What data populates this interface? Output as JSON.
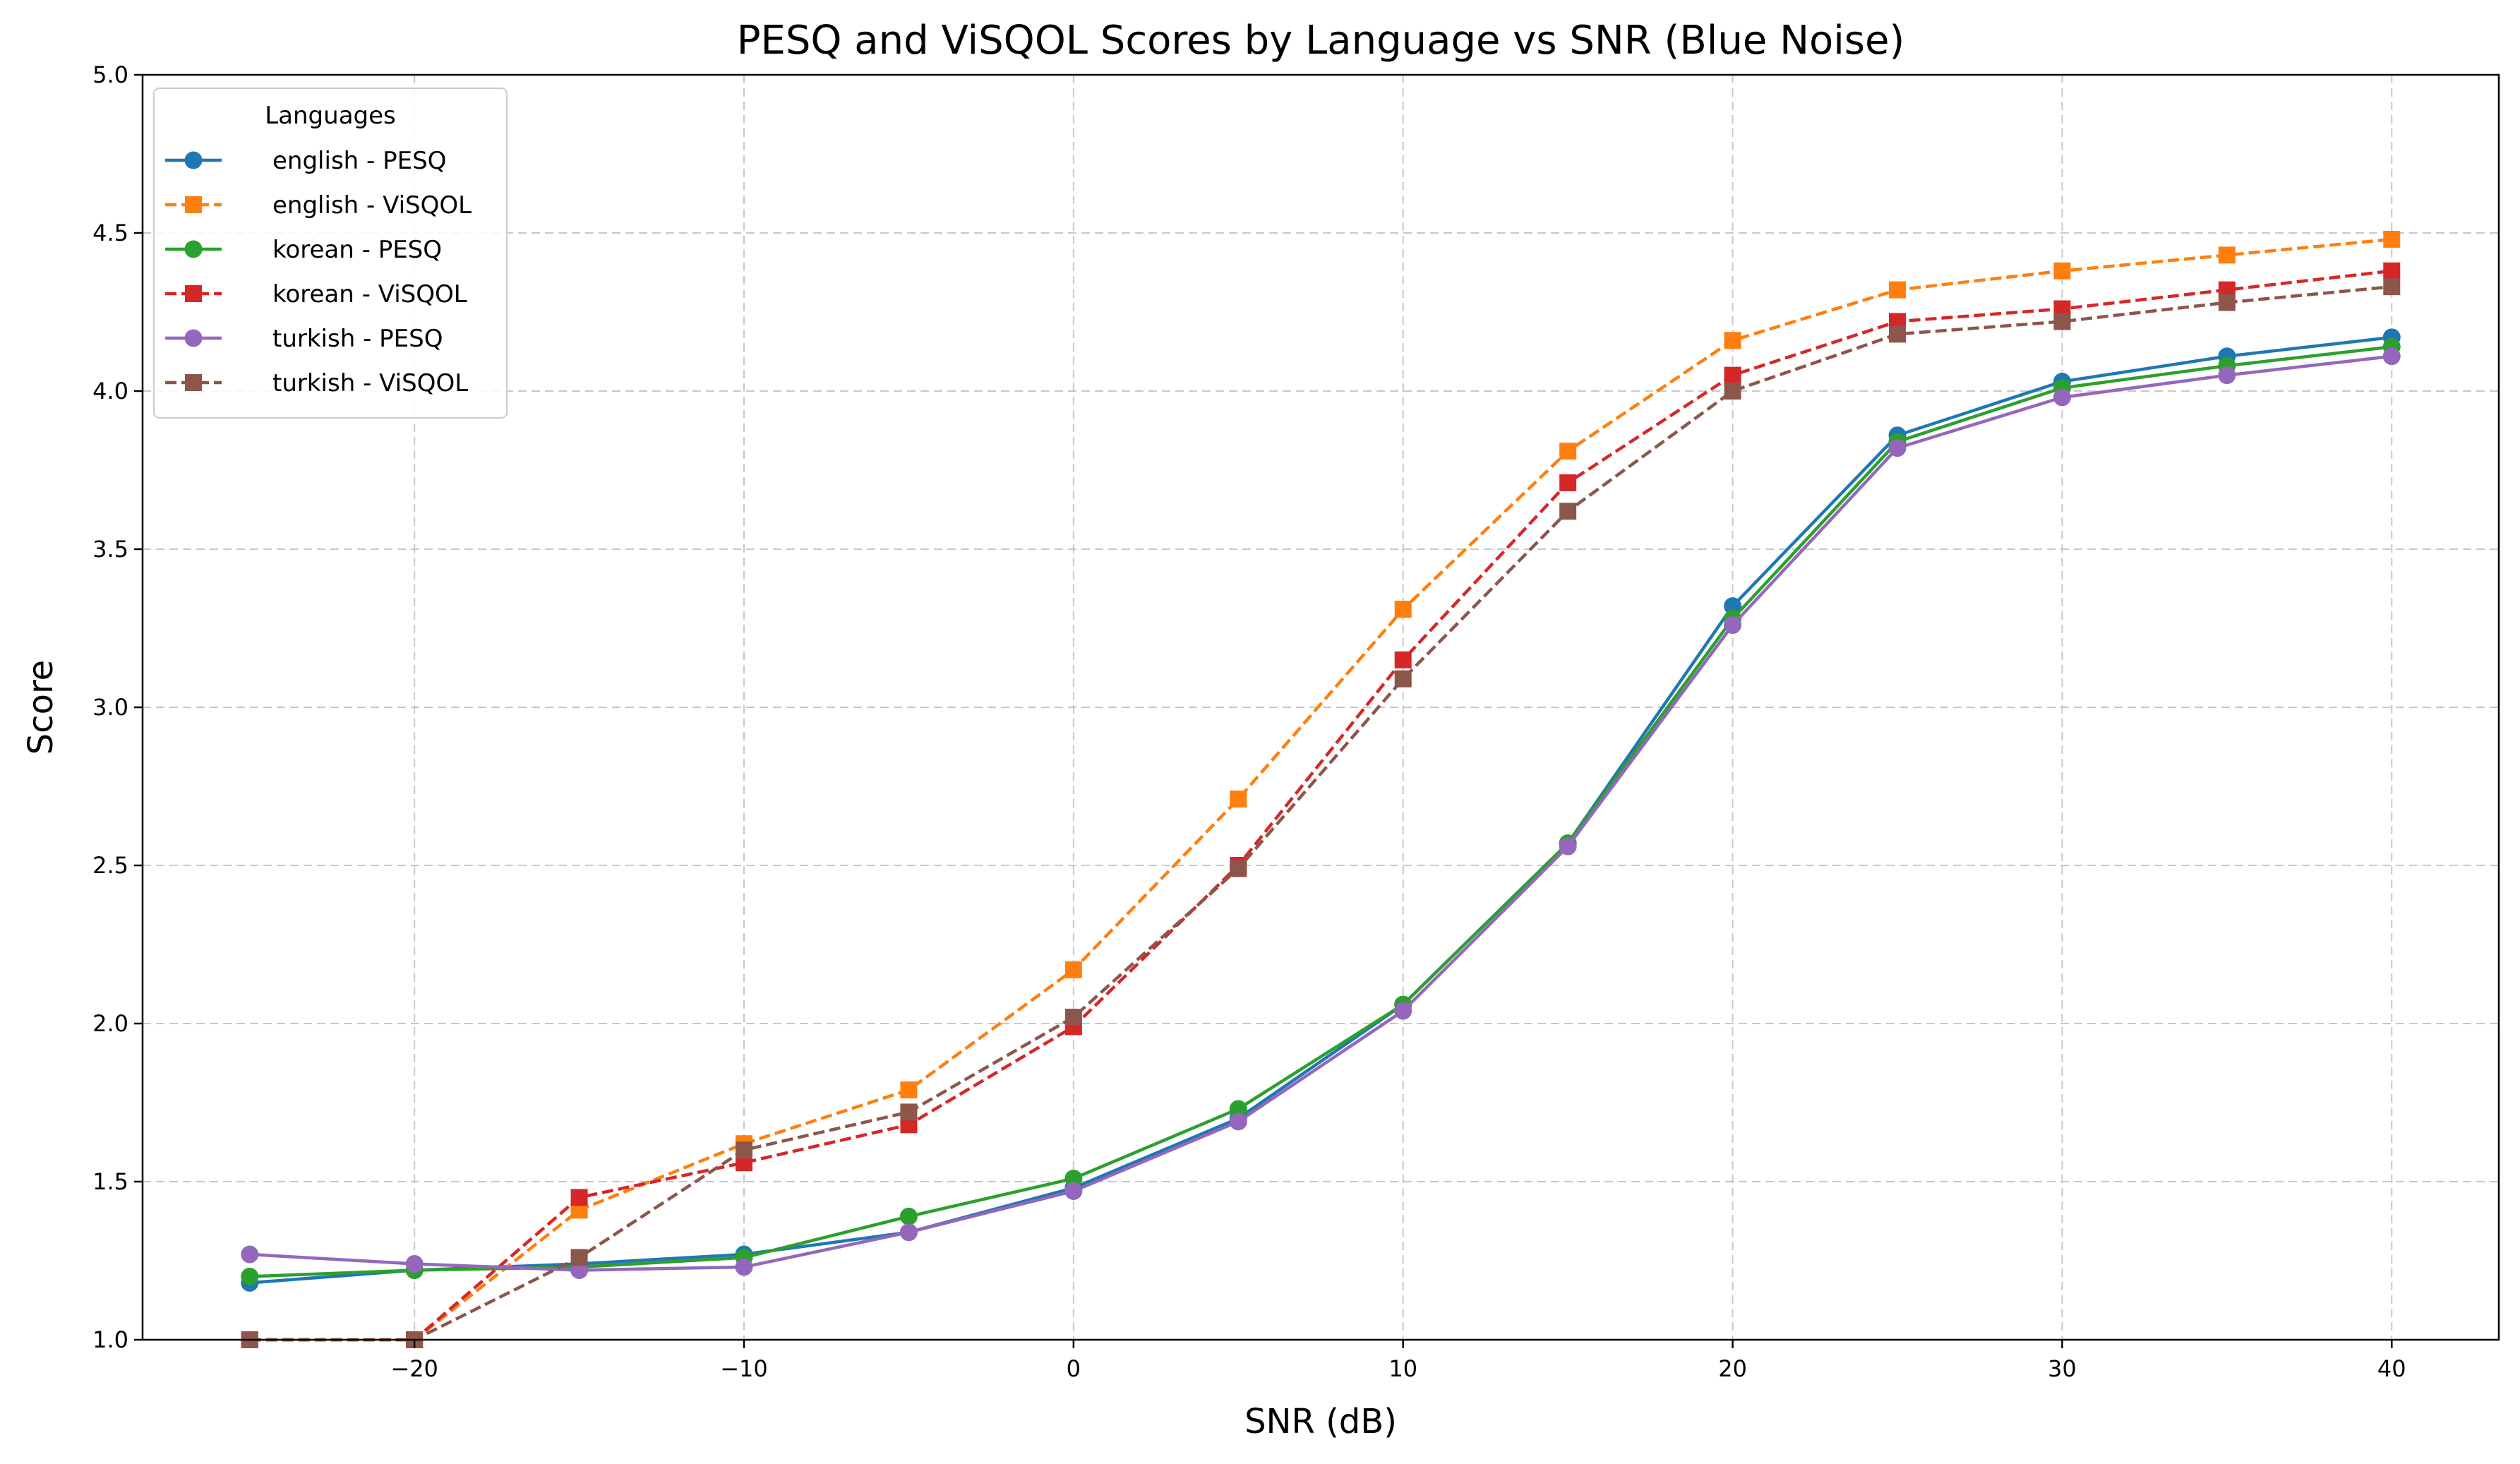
{
  "chart_data": {
    "type": "line",
    "title": "PESQ and ViSQOL Scores by Language vs SNR (Blue Noise)",
    "xlabel": "SNR (dB)",
    "ylabel": "Score",
    "xlim": [
      -28.25,
      43.25
    ],
    "ylim": [
      1.0,
      5.0
    ],
    "x_ticks": [
      -20,
      -10,
      0,
      10,
      20,
      30,
      40
    ],
    "x_tick_labels": [
      "−20",
      "−10",
      "0",
      "10",
      "20",
      "30",
      "40"
    ],
    "y_ticks": [
      1.0,
      1.5,
      2.0,
      2.5,
      3.0,
      3.5,
      4.0,
      4.5,
      5.0
    ],
    "y_tick_labels": [
      "1.0",
      "1.5",
      "2.0",
      "2.5",
      "3.0",
      "3.5",
      "4.0",
      "4.5",
      "5.0"
    ],
    "grid": true,
    "legend": {
      "title": "Languages",
      "placement": "top-left"
    },
    "x": [
      -25,
      -20,
      -15,
      -10,
      -5,
      0,
      5,
      10,
      15,
      20,
      25,
      30,
      35,
      40
    ],
    "series": [
      {
        "name": "english - PESQ",
        "color": "#1f77b4",
        "linestyle": "solid",
        "marker": "circle",
        "values": [
          1.18,
          1.22,
          1.24,
          1.27,
          1.34,
          1.48,
          1.7,
          2.06,
          2.57,
          3.32,
          3.86,
          4.03,
          4.11,
          4.17
        ]
      },
      {
        "name": "english - ViSQOL",
        "color": "#ff7f0e",
        "linestyle": "dashed",
        "marker": "square",
        "values": [
          1.0,
          1.0,
          1.41,
          1.62,
          1.79,
          2.17,
          2.71,
          3.31,
          3.81,
          4.16,
          4.32,
          4.38,
          4.43,
          4.48
        ]
      },
      {
        "name": "korean - PESQ",
        "color": "#2ca02c",
        "linestyle": "solid",
        "marker": "circle",
        "values": [
          1.2,
          1.22,
          1.23,
          1.26,
          1.39,
          1.51,
          1.73,
          2.06,
          2.57,
          3.28,
          3.84,
          4.01,
          4.08,
          4.14
        ]
      },
      {
        "name": "korean - ViSQOL",
        "color": "#d62728",
        "linestyle": "dashed",
        "marker": "square",
        "values": [
          1.0,
          1.0,
          1.45,
          1.56,
          1.68,
          1.99,
          2.5,
          3.15,
          3.71,
          4.05,
          4.22,
          4.26,
          4.32,
          4.38
        ]
      },
      {
        "name": "turkish - PESQ",
        "color": "#9467bd",
        "linestyle": "solid",
        "marker": "circle",
        "values": [
          1.27,
          1.24,
          1.22,
          1.23,
          1.34,
          1.47,
          1.69,
          2.04,
          2.56,
          3.26,
          3.82,
          3.98,
          4.05,
          4.11
        ]
      },
      {
        "name": "turkish - ViSQOL",
        "color": "#8c564b",
        "linestyle": "dashed",
        "marker": "square",
        "values": [
          1.0,
          1.0,
          1.26,
          1.6,
          1.72,
          2.02,
          2.49,
          3.09,
          3.62,
          4.0,
          4.18,
          4.22,
          4.28,
          4.33
        ]
      }
    ]
  }
}
